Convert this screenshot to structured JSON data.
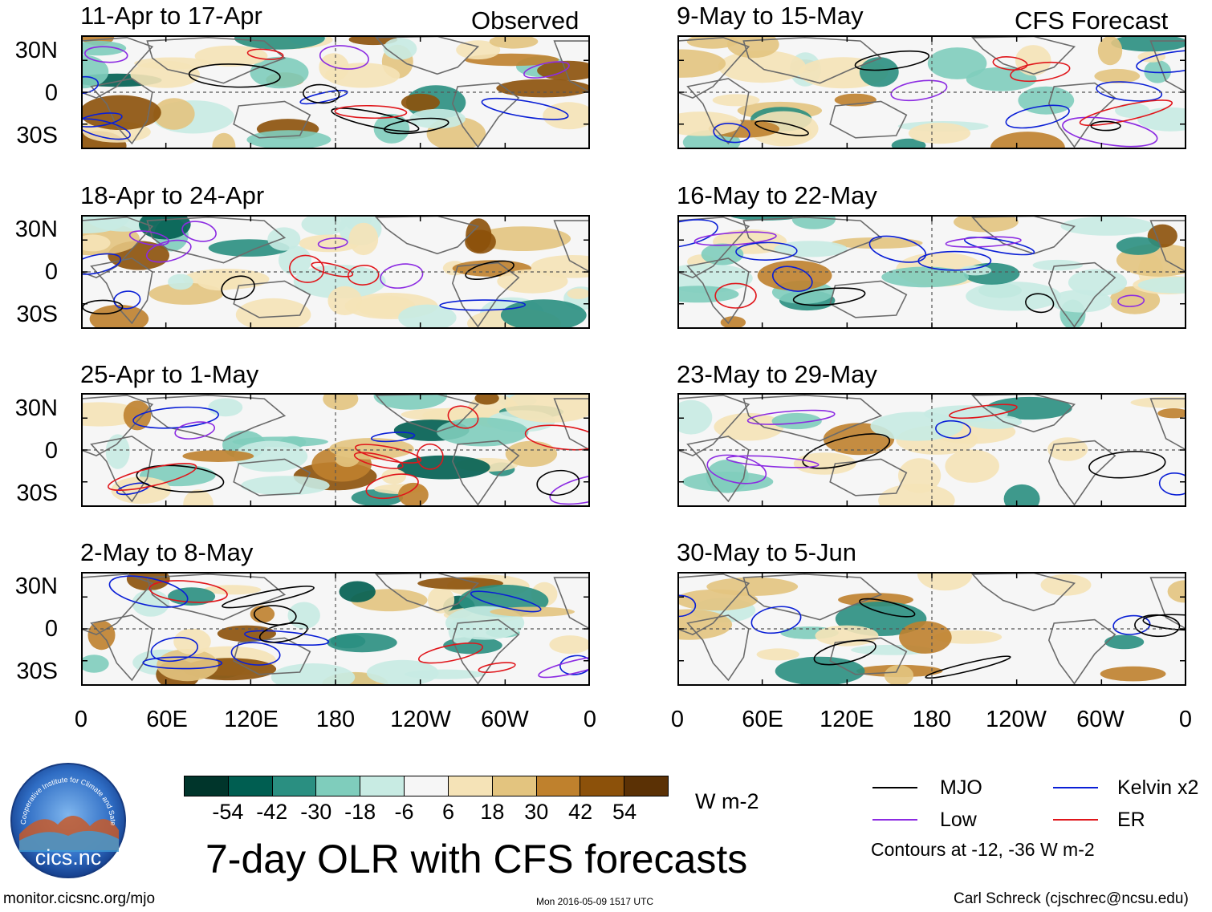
{
  "columns": {
    "observed": "Observed",
    "forecast": "CFS Forecast"
  },
  "panels": [
    {
      "title": "11-Apr to 17-Apr"
    },
    {
      "title": "18-Apr to 24-Apr"
    },
    {
      "title": "25-Apr to 1-May"
    },
    {
      "title": "2-May to 8-May"
    },
    {
      "title": "9-May to 15-May"
    },
    {
      "title": "16-May to 22-May"
    },
    {
      "title": "23-May to 29-May"
    },
    {
      "title": "30-May to 5-Jun"
    }
  ],
  "lat_labels": [
    "30N",
    "0",
    "30S"
  ],
  "lon_labels": [
    "0",
    "60E",
    "120E",
    "180",
    "120W",
    "60W",
    "0"
  ],
  "colorbar": {
    "colors": [
      "#00352b",
      "#005e51",
      "#2a8f81",
      "#7fcdbc",
      "#c8ebe3",
      "#f6f6f6",
      "#f5e3b7",
      "#e3c47f",
      "#bf812d",
      "#8c510a",
      "#5b3105"
    ],
    "ticks": [
      "-54",
      "-42",
      "-30",
      "-18",
      "-6",
      "6",
      "18",
      "30",
      "42",
      "54"
    ],
    "units": "W m-2"
  },
  "legend": {
    "items": [
      {
        "label": "MJO",
        "color": "#000000"
      },
      {
        "label": "Kelvin x2",
        "color": "#0a1fd6"
      },
      {
        "label": "Low",
        "color": "#8c2be2"
      },
      {
        "label": "ER",
        "color": "#e0161b"
      }
    ],
    "note": "Contours at -12, -36 W m-2"
  },
  "main_title": "7-day OLR with CFS forecasts",
  "logo_text": "cics.nc",
  "logo_ring_text": "Cooperative Institute for Climate and Satellites",
  "footer": {
    "url": "monitor.cicsnc.org/mjo",
    "timestamp": "Mon 2016-05-09 1517 UTC",
    "author": "Carl Schreck (cjschrec@ncsu.edu)"
  }
}
